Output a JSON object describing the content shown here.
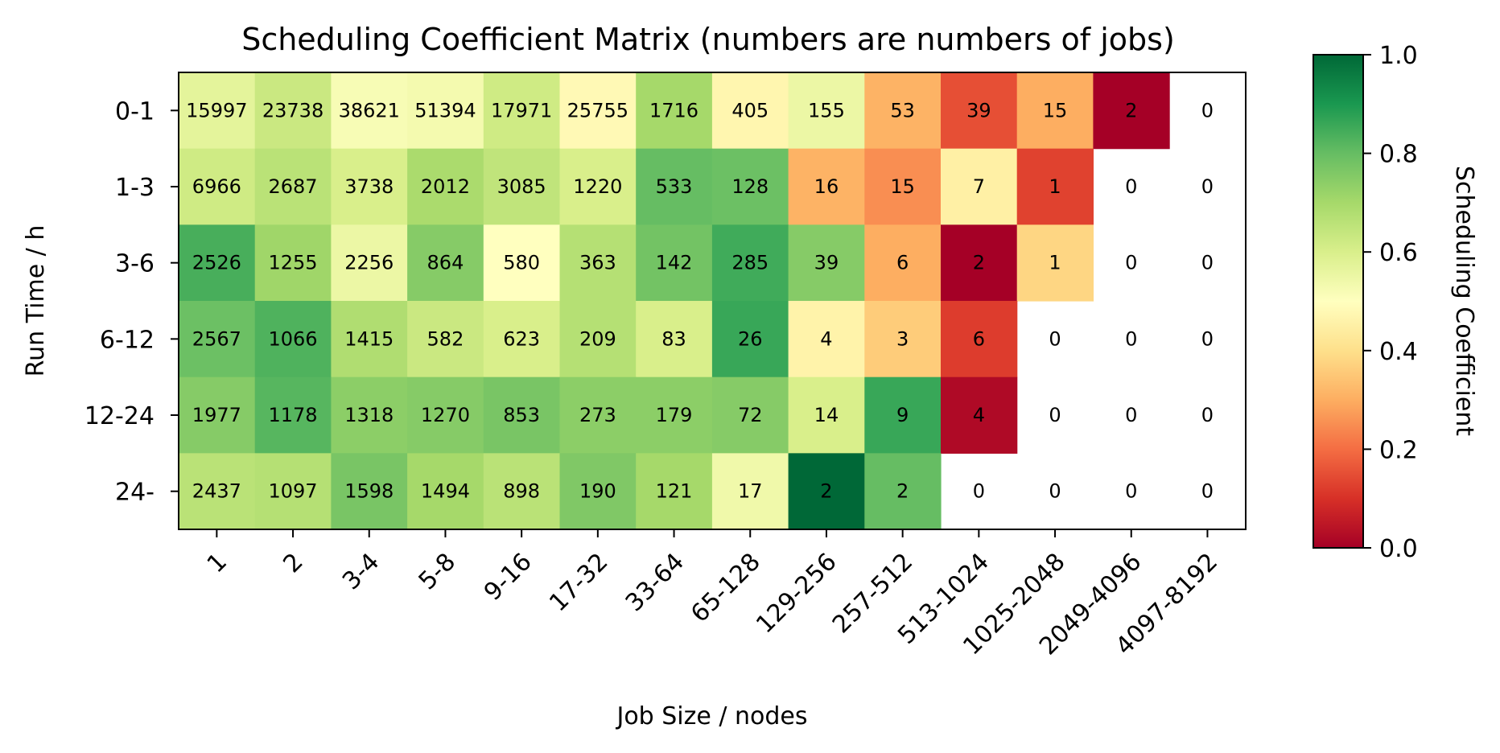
{
  "chart_data": {
    "type": "heatmap",
    "title": "Scheduling Coefficient Matrix (numbers are numbers of jobs)",
    "xlabel": "Job Size / nodes",
    "ylabel": "Run Time / h",
    "colorbar_label": "Scheduling Coefficient",
    "colorbar_ticks": [
      "0.0",
      "0.2",
      "0.4",
      "0.6",
      "0.8",
      "1.0"
    ],
    "colormap": "RdYlGn",
    "value_range": [
      0,
      1
    ],
    "x_categories": [
      "1",
      "2",
      "3-4",
      "5-8",
      "9-16",
      "17-32",
      "33-64",
      "65-128",
      "129-256",
      "257-512",
      "513-1024",
      "1025-2048",
      "2049-4096",
      "4097-8192"
    ],
    "y_categories": [
      "0-1",
      "1-3",
      "3-6",
      "6-12",
      "12-24",
      "24-"
    ],
    "counts": [
      [
        "15997",
        "23738",
        "38621",
        "51394",
        "17971",
        "25755",
        "1716",
        "405",
        "155",
        "53",
        "39",
        "15",
        "2",
        "0"
      ],
      [
        "6966",
        "2687",
        "3738",
        "2012",
        "3085",
        "1220",
        "533",
        "128",
        "16",
        "15",
        "7",
        "1",
        "0",
        "0"
      ],
      [
        "2526",
        "1255",
        "2256",
        "864",
        "580",
        "363",
        "142",
        "285",
        "39",
        "6",
        "2",
        "1",
        "0",
        "0"
      ],
      [
        "2567",
        "1066",
        "1415",
        "582",
        "623",
        "209",
        "83",
        "26",
        "4",
        "3",
        "6",
        "0",
        "0",
        "0"
      ],
      [
        "1977",
        "1178",
        "1318",
        "1270",
        "853",
        "273",
        "179",
        "72",
        "14",
        "9",
        "4",
        "0",
        "0",
        "0"
      ],
      [
        "2437",
        "1097",
        "1598",
        "1494",
        "898",
        "190",
        "121",
        "17",
        "2",
        "2",
        "0",
        "0",
        "0",
        "0"
      ]
    ],
    "coefficients": [
      [
        0.57,
        0.63,
        0.52,
        0.53,
        0.62,
        0.48,
        0.7,
        0.47,
        0.55,
        0.31,
        0.15,
        0.3,
        0.0,
        null
      ],
      [
        0.62,
        0.66,
        0.6,
        0.69,
        0.65,
        0.6,
        0.8,
        0.79,
        0.31,
        0.25,
        0.45,
        0.13,
        null,
        null
      ],
      [
        0.84,
        0.71,
        0.55,
        0.75,
        0.5,
        0.67,
        0.78,
        0.85,
        0.75,
        0.3,
        0.0,
        0.38,
        null,
        null
      ],
      [
        0.79,
        0.83,
        0.68,
        0.63,
        0.6,
        0.67,
        0.6,
        0.86,
        0.46,
        0.36,
        0.12,
        null,
        null,
        null
      ],
      [
        0.75,
        0.82,
        0.74,
        0.75,
        0.77,
        0.74,
        0.74,
        0.75,
        0.6,
        0.86,
        0.02,
        null,
        null,
        null
      ],
      [
        0.66,
        0.67,
        0.77,
        0.7,
        0.66,
        0.76,
        0.7,
        0.54,
        1.0,
        0.8,
        null,
        null,
        null,
        null
      ]
    ]
  }
}
